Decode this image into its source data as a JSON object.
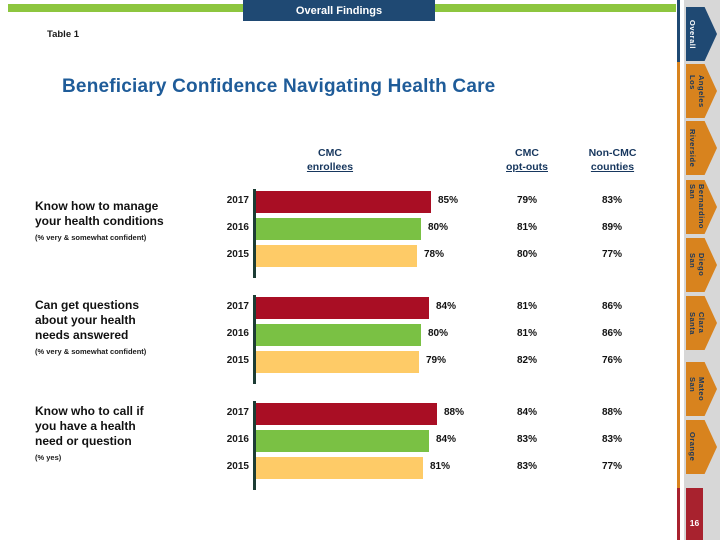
{
  "header": {
    "band_label": "Overall Findings",
    "table_label": "Table 1"
  },
  "title": "Beneficiary Confidence Navigating Health Care",
  "columns": [
    {
      "line1": "CMC",
      "line2": "enrollees"
    },
    {
      "line1": "CMC",
      "line2": "opt-outs"
    },
    {
      "line1": "Non-CMC",
      "line2": "counties"
    }
  ],
  "chart_data": {
    "type": "bar",
    "title": "Beneficiary Confidence Navigating Health Care",
    "unit": "%",
    "xlim": [
      0,
      100
    ],
    "legend_position": "none",
    "bar_colors": {
      "2017": "#A90E24",
      "2016": "#7AC144",
      "2015": "#FECB67"
    },
    "groups": [
      {
        "label_lines": [
          "Know how to manage",
          "your health conditions"
        ],
        "note": "(% very & somewhat confident)",
        "years": [
          "2017",
          "2016",
          "2015"
        ],
        "cmc_enrollees": [
          85,
          80,
          78
        ],
        "cmc_opt_outs": [
          "79%",
          "81%",
          "80%"
        ],
        "non_cmc_counties": [
          "83%",
          "89%",
          "77%"
        ]
      },
      {
        "label_lines": [
          "Can get questions",
          "about your health",
          "needs answered"
        ],
        "note": "(% very & somewhat confident)",
        "years": [
          "2017",
          "2016",
          "2015"
        ],
        "cmc_enrollees": [
          84,
          80,
          79
        ],
        "cmc_opt_outs": [
          "81%",
          "81%",
          "82%"
        ],
        "non_cmc_counties": [
          "86%",
          "86%",
          "76%"
        ]
      },
      {
        "label_lines": [
          "Know who to call if",
          "you have a health",
          "need or question"
        ],
        "note": "(% yes)",
        "years": [
          "2017",
          "2016",
          "2015"
        ],
        "cmc_enrollees": [
          88,
          84,
          81
        ],
        "cmc_opt_outs": [
          "84%",
          "83%",
          "83%"
        ],
        "non_cmc_counties": [
          "88%",
          "83%",
          "77%"
        ]
      }
    ]
  },
  "sidebar": {
    "tabs": [
      {
        "lines": [
          "Overall"
        ],
        "active": true
      },
      {
        "lines": [
          "Los",
          "Angeles"
        ],
        "active": false
      },
      {
        "lines": [
          "Riverside"
        ],
        "active": false
      },
      {
        "lines": [
          "San",
          "Bernardino"
        ],
        "active": false
      },
      {
        "lines": [
          "San",
          "Diego"
        ],
        "active": false
      },
      {
        "lines": [
          "Santa",
          "Clara"
        ],
        "active": false
      },
      {
        "lines": [
          "San",
          "Mateo"
        ],
        "active": false
      },
      {
        "lines": [
          "Orange"
        ],
        "active": false
      }
    ],
    "page_number": "16"
  },
  "colors": {
    "accent_green": "#8DC63F",
    "header_navy": "#1F4973",
    "title_blue": "#1F5C99",
    "tab_orange": "#D8831E",
    "page_red": "#A8222E"
  }
}
